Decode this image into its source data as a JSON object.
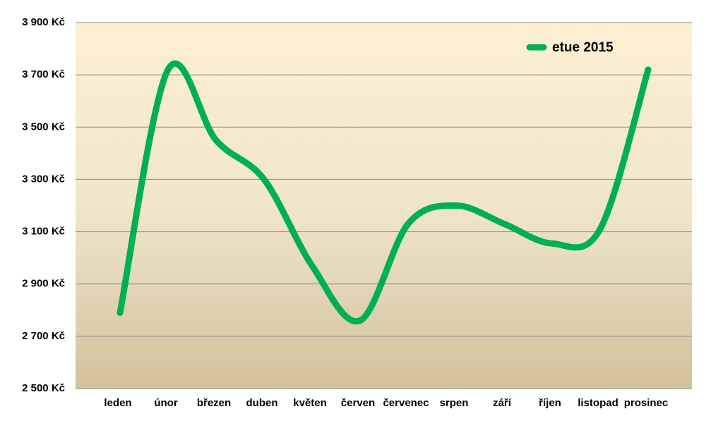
{
  "chart_data": {
    "type": "line",
    "categories": [
      "leden",
      "únor",
      "březen",
      "duben",
      "květen",
      "červen",
      "červenec",
      "srpen",
      "září",
      "říjen",
      "listopad",
      "prosinec"
    ],
    "series": [
      {
        "name": "etue 2015",
        "color": "#00b050",
        "values": [
          2790,
          3720,
          3450,
          3300,
          2970,
          2760,
          3130,
          3200,
          3130,
          3055,
          3110,
          3720
        ]
      }
    ],
    "ylim": [
      2500,
      3900
    ],
    "yticks": [
      {
        "value": 2500,
        "label": "2 500 Kč"
      },
      {
        "value": 2700,
        "label": "2 700 Kč"
      },
      {
        "value": 2900,
        "label": "2 900 Kč"
      },
      {
        "value": 3100,
        "label": "3 100 Kč"
      },
      {
        "value": 3300,
        "label": "3 300 Kč"
      },
      {
        "value": 3500,
        "label": "3 500 Kč"
      },
      {
        "value": 3700,
        "label": "3 700 Kč"
      },
      {
        "value": 3900,
        "label": "3 900 Kč"
      }
    ],
    "grid": true,
    "legend": "top-right"
  }
}
